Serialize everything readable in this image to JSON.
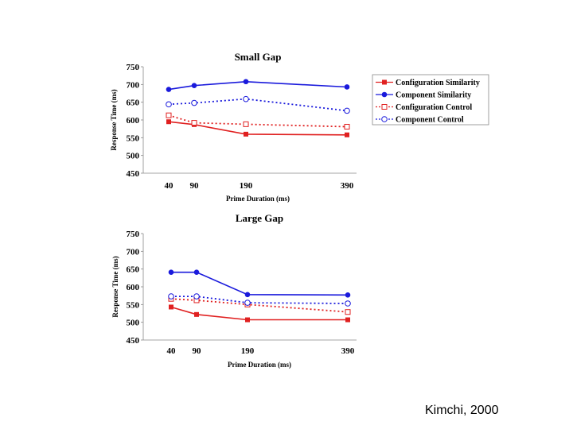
{
  "slide": {
    "credit": "Kimchi, 2000"
  },
  "legend": {
    "entries": [
      {
        "name": "Configuration Similarity",
        "color": "#e02020",
        "dash": "solid",
        "marker": "square-filled"
      },
      {
        "name": "Component Similarity",
        "color": "#1a1adc",
        "dash": "solid",
        "marker": "circle-filled"
      },
      {
        "name": "Configuration Control",
        "color": "#e02020",
        "dash": "dotted",
        "marker": "square-open"
      },
      {
        "name": "Component Control",
        "color": "#1a1adc",
        "dash": "dotted",
        "marker": "circle-open"
      }
    ]
  },
  "chart_data": [
    {
      "type": "line",
      "title": "Small Gap",
      "xlabel": "Prime Duration (ms)",
      "ylabel": "Response Time (ms)",
      "x": [
        40,
        90,
        190,
        390
      ],
      "ylim": [
        450,
        750
      ],
      "yticks": [
        450,
        500,
        550,
        600,
        650,
        700,
        750
      ],
      "series": [
        {
          "name": "Configuration Similarity",
          "values": [
            595,
            587,
            560,
            558
          ]
        },
        {
          "name": "Component Similarity",
          "values": [
            686,
            697,
            708,
            693
          ]
        },
        {
          "name": "Configuration Control",
          "values": [
            613,
            592,
            588,
            581
          ]
        },
        {
          "name": "Component Control",
          "values": [
            644,
            648,
            659,
            626
          ]
        }
      ]
    },
    {
      "type": "line",
      "title": "Large Gap",
      "xlabel": "Prime Duration (ms)",
      "ylabel": "Response Time (ms)",
      "x": [
        40,
        90,
        190,
        390
      ],
      "ylim": [
        450,
        750
      ],
      "yticks": [
        450,
        500,
        550,
        600,
        650,
        700,
        750
      ],
      "series": [
        {
          "name": "Configuration Similarity",
          "values": [
            543,
            522,
            507,
            507
          ]
        },
        {
          "name": "Component Similarity",
          "values": [
            641,
            641,
            578,
            577
          ]
        },
        {
          "name": "Configuration Control",
          "values": [
            566,
            562,
            550,
            529
          ]
        },
        {
          "name": "Component Control",
          "values": [
            573,
            573,
            555,
            553
          ]
        }
      ]
    }
  ]
}
